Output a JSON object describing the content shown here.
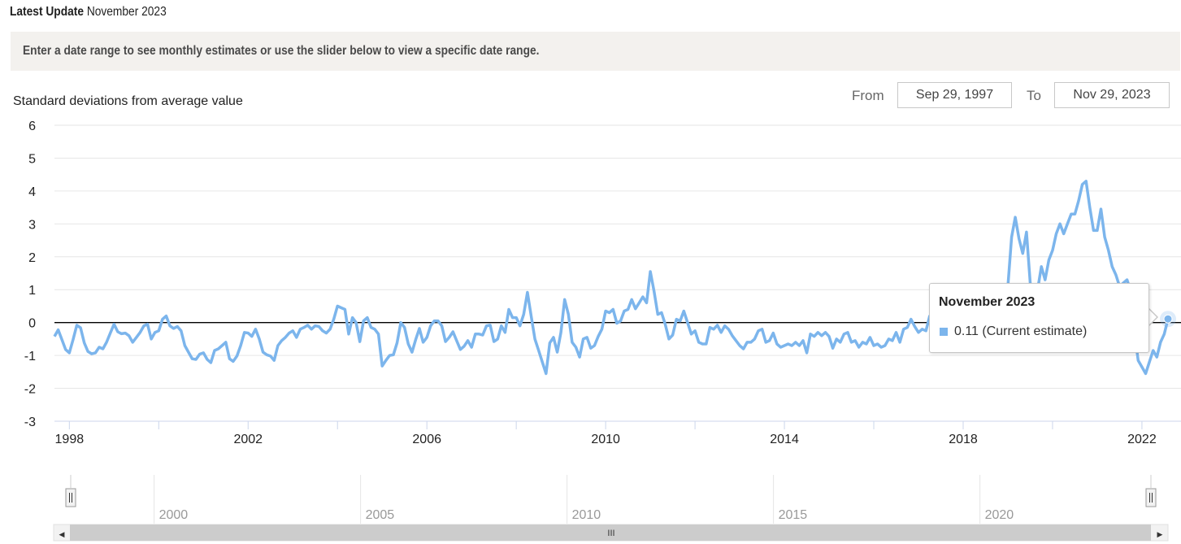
{
  "header": {
    "latest_label": "Latest Update",
    "latest_value": "November 2023",
    "instruction": "Enter a date range to see monthly estimates or use the slider below to view a specific date range."
  },
  "range": {
    "from_label": "From",
    "from_value": "Sep 29, 1997",
    "to_label": "To",
    "to_value": "Nov 29, 2023"
  },
  "tooltip": {
    "title": "November 2023",
    "value_text": "0.11 (Current estimate)"
  },
  "navigator": {
    "year_labels": [
      "2000",
      "2005",
      "2010",
      "2015",
      "2020"
    ],
    "scrollbar_grip": "III",
    "left_arrow": "◀",
    "right_arrow": "▶"
  },
  "colors": {
    "series": "#7cb5ec",
    "grid": "#e6e6e6",
    "zero_line": "#000000"
  },
  "chart_data": {
    "type": "line",
    "title": "",
    "ylabel": "Standard deviations from average value",
    "xlabel": "",
    "ylim": [
      -3,
      6
    ],
    "yticks": [
      "6",
      "5",
      "4",
      "3",
      "2",
      "1",
      "0",
      "-1",
      "-2",
      "-3"
    ],
    "xticks": [
      "1998",
      "2002",
      "2006",
      "2010",
      "2014",
      "2018",
      "2022"
    ],
    "x_start": "1997-09",
    "x_end": "2023-11",
    "series": [
      {
        "values": [
          -0.42,
          -0.22,
          -0.52,
          -0.82,
          -0.92,
          -0.52,
          -0.08,
          -0.16,
          -0.62,
          -0.88,
          -0.95,
          -0.92,
          -0.75,
          -0.8,
          -0.6,
          -0.32,
          -0.05,
          -0.28,
          -0.34,
          -0.32,
          -0.4,
          -0.6,
          -0.45,
          -0.3,
          -0.1,
          -0.05,
          -0.5,
          -0.3,
          -0.25,
          0.1,
          0.2,
          -0.1,
          -0.18,
          -0.12,
          -0.25,
          -0.7,
          -0.9,
          -1.1,
          -1.12,
          -0.96,
          -0.92,
          -1.12,
          -1.22,
          -0.85,
          -0.8,
          -0.7,
          -0.6,
          -1.1,
          -1.18,
          -1.02,
          -0.7,
          -0.3,
          -0.32,
          -0.42,
          -0.2,
          -0.5,
          -0.9,
          -0.98,
          -1.02,
          -1.15,
          -0.7,
          -0.55,
          -0.45,
          -0.32,
          -0.25,
          -0.45,
          -0.2,
          -0.15,
          -0.08,
          -0.2,
          -0.1,
          -0.12,
          -0.25,
          -0.32,
          -0.2,
          0.1,
          0.5,
          0.45,
          0.4,
          -0.35,
          0.15,
          0.0,
          -0.58,
          0.05,
          0.15,
          -0.15,
          -0.2,
          -0.35,
          -1.32,
          -1.15,
          -1.0,
          -0.98,
          -0.62,
          0.0,
          -0.15,
          -0.65,
          -0.9,
          -0.52,
          -0.18,
          -0.6,
          -0.45,
          -0.1,
          0.05,
          0.05,
          -0.1,
          -0.58,
          -0.45,
          -0.28,
          -0.55,
          -0.82,
          -0.72,
          -0.55,
          -0.75,
          -0.35,
          -0.35,
          -0.38,
          -0.1,
          -0.08,
          -0.58,
          -0.5,
          -0.1,
          -0.3,
          0.4,
          0.15,
          0.15,
          -0.1,
          0.25,
          0.92,
          0.2,
          -0.5,
          -0.85,
          -1.2,
          -1.55,
          -0.62,
          -0.45,
          -0.9,
          -0.3,
          0.7,
          0.25,
          -0.6,
          -0.75,
          -1.05,
          -0.5,
          -0.45,
          -0.78,
          -0.7,
          -0.42,
          -0.2,
          0.35,
          0.3,
          0.4,
          -0.02,
          0.05,
          0.35,
          0.4,
          0.7,
          0.42,
          0.6,
          0.78,
          0.6,
          1.55,
          0.95,
          0.25,
          0.3,
          -0.05,
          -0.5,
          -0.38,
          0.1,
          0.05,
          0.35,
          0.0,
          -0.35,
          -0.25,
          -0.6,
          -0.65,
          -0.65,
          -0.15,
          -0.2,
          -0.08,
          -0.3,
          -0.1,
          -0.2,
          -0.4,
          -0.55,
          -0.7,
          -0.8,
          -0.6,
          -0.6,
          -0.5,
          -0.25,
          -0.2,
          -0.6,
          -0.55,
          -0.32,
          -0.65,
          -0.75,
          -0.7,
          -0.65,
          -0.7,
          -0.6,
          -0.7,
          -0.55,
          -0.92,
          -0.35,
          -0.42,
          -0.3,
          -0.4,
          -0.3,
          -0.42,
          -0.78,
          -0.5,
          -0.6,
          -0.35,
          -0.3,
          -0.6,
          -0.55,
          -0.75,
          -0.6,
          -0.65,
          -0.45,
          -0.7,
          -0.65,
          -0.75,
          -0.7,
          -0.5,
          -0.55,
          -0.3,
          -0.6,
          -0.2,
          -0.15,
          0.1,
          -0.12,
          -0.3,
          -0.2,
          -0.25,
          0.2,
          0.2,
          0.15,
          0.05,
          -0.1,
          0.1,
          0.05,
          0.4,
          0.55,
          0.75,
          0.8,
          0.7,
          0.6,
          0.2,
          0.3,
          0.45,
          0.5,
          0.6,
          0.7,
          0.9,
          1.0,
          1.1,
          2.6,
          3.2,
          2.55,
          2.1,
          2.75,
          1.2,
          0.4,
          1.0,
          1.7,
          1.3,
          1.9,
          2.2,
          2.7,
          3.0,
          2.7,
          3.0,
          3.3,
          3.3,
          3.7,
          4.2,
          4.3,
          3.5,
          2.8,
          2.8,
          3.45,
          2.6,
          2.2,
          1.7,
          1.45,
          1.1,
          1.2,
          1.3,
          0.95,
          -0.3,
          -1.15,
          -1.35,
          -1.55,
          -1.2,
          -0.85,
          -1.05,
          -0.6,
          -0.35,
          0.11
        ]
      }
    ]
  }
}
